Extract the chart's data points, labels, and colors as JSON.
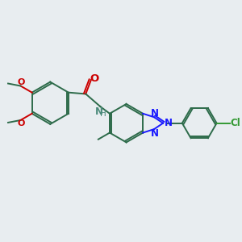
{
  "background_color": "#e8edf0",
  "bond_color": "#2d6b4a",
  "n_color": "#1a1aff",
  "o_color": "#cc0000",
  "cl_color": "#339933",
  "h_color": "#4a8a7a",
  "figsize": [
    3.0,
    3.0
  ],
  "dpi": 100,
  "xlim": [
    0,
    10
  ],
  "ylim": [
    0,
    10
  ]
}
